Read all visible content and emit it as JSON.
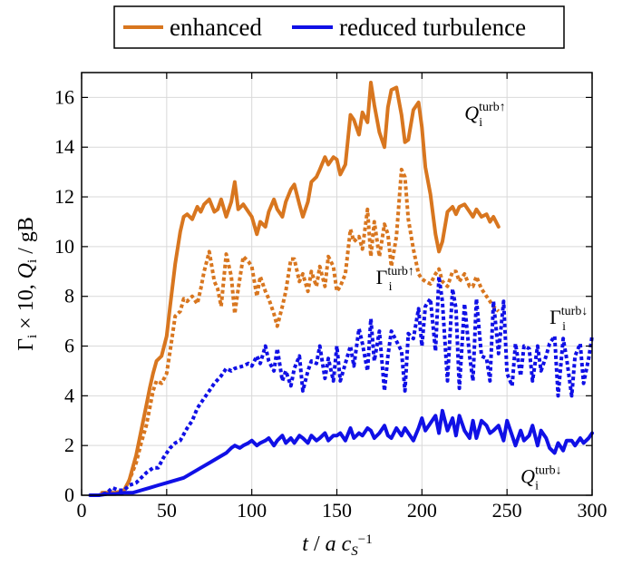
{
  "chart_data": {
    "type": "line",
    "xlabel": "t / a c_S^-1",
    "ylabel": "Γi × 10, Qi / gB",
    "xlim": [
      0,
      300
    ],
    "ylim": [
      0,
      17
    ],
    "xticks": [
      0,
      50,
      100,
      150,
      200,
      250,
      300
    ],
    "yticks": [
      0,
      2,
      4,
      6,
      8,
      10,
      12,
      14,
      16
    ],
    "grid": true,
    "legend_position": "top, outside plot",
    "legend": [
      "enhanced",
      "reduced turbulence"
    ],
    "series": [
      {
        "name": "enhanced",
        "quantity": "Q",
        "color": "#d8761f",
        "style": "solid",
        "x": [
          12,
          20,
          25,
          28,
          32,
          35,
          38,
          40,
          42,
          44,
          47,
          50,
          52,
          55,
          58,
          60,
          62,
          65,
          68,
          70,
          72,
          75,
          78,
          80,
          82,
          85,
          88,
          90,
          92,
          95,
          98,
          100,
          103,
          105,
          108,
          110,
          113,
          115,
          118,
          120,
          123,
          125,
          128,
          130,
          133,
          135,
          138,
          140,
          143,
          145,
          148,
          150,
          152,
          155,
          158,
          160,
          163,
          165,
          168,
          170,
          172,
          175,
          178,
          180,
          182,
          185,
          188,
          190,
          192,
          195,
          198,
          200,
          202,
          205,
          208,
          210,
          212,
          215,
          218,
          220,
          222,
          225,
          228,
          230,
          232,
          235,
          238,
          240,
          242,
          245
        ],
        "y": [
          0.1,
          0.1,
          0.2,
          0.6,
          1.6,
          2.6,
          3.6,
          4.3,
          4.9,
          5.4,
          5.6,
          6.4,
          7.6,
          9.3,
          10.6,
          11.2,
          11.3,
          11.1,
          11.6,
          11.4,
          11.7,
          11.9,
          11.4,
          11.5,
          11.9,
          11.2,
          11.8,
          12.6,
          11.5,
          11.7,
          11.4,
          11.2,
          10.5,
          11.0,
          10.8,
          11.4,
          11.9,
          11.5,
          11.2,
          11.8,
          12.3,
          12.5,
          11.7,
          11.2,
          11.8,
          12.6,
          12.8,
          13.1,
          13.6,
          13.3,
          13.6,
          13.5,
          12.9,
          13.3,
          15.3,
          15.1,
          14.5,
          15.4,
          15.0,
          16.6,
          15.7,
          14.6,
          14.0,
          15.6,
          16.3,
          16.4,
          15.3,
          14.2,
          14.3,
          15.5,
          15.8,
          14.8,
          13.2,
          12.1,
          10.5,
          9.8,
          10.2,
          11.4,
          11.6,
          11.3,
          11.6,
          11.7,
          11.4,
          11.2,
          11.5,
          11.2,
          11.3,
          11.0,
          11.2,
          10.8
        ]
      },
      {
        "name": "enhanced",
        "quantity": "Γ",
        "color": "#d8761f",
        "style": "dotted",
        "x": [
          12,
          20,
          25,
          28,
          32,
          35,
          38,
          40,
          42,
          44,
          47,
          50,
          52,
          55,
          58,
          60,
          62,
          65,
          68,
          70,
          72,
          75,
          78,
          80,
          82,
          85,
          88,
          90,
          92,
          95,
          98,
          100,
          103,
          105,
          108,
          110,
          113,
          115,
          118,
          120,
          123,
          125,
          128,
          130,
          133,
          135,
          138,
          140,
          143,
          145,
          148,
          150,
          152,
          155,
          158,
          160,
          163,
          165,
          168,
          170,
          172,
          175,
          178,
          180,
          182,
          185,
          188,
          190,
          192,
          195,
          198,
          200,
          202,
          205,
          208,
          210,
          212,
          215,
          218,
          220,
          222,
          225,
          228,
          230,
          232,
          235,
          238,
          240,
          242,
          245
        ],
        "y": [
          0.1,
          0.1,
          0.2,
          0.6,
          1.3,
          2.1,
          2.8,
          3.5,
          4.2,
          4.6,
          4.5,
          4.9,
          5.8,
          7.2,
          7.4,
          7.9,
          7.8,
          8.0,
          7.7,
          8.3,
          9.0,
          9.8,
          8.6,
          8.3,
          7.6,
          9.7,
          8.8,
          7.3,
          8.3,
          9.6,
          9.4,
          9.2,
          8.0,
          8.8,
          8.2,
          7.9,
          7.3,
          6.8,
          7.6,
          8.2,
          9.5,
          9.5,
          8.6,
          8.9,
          8.2,
          9.0,
          8.4,
          9.2,
          8.4,
          9.6,
          9.2,
          8.2,
          8.4,
          8.9,
          10.7,
          10.2,
          10.4,
          9.9,
          11.5,
          9.6,
          11.0,
          9.6,
          10.9,
          10.5,
          9.2,
          10.4,
          13.1,
          12.8,
          11.1,
          9.9,
          8.9,
          8.7,
          8.6,
          8.5,
          8.9,
          9.1,
          8.6,
          8.4,
          9.0,
          9.0,
          8.6,
          8.9,
          8.4,
          8.4,
          8.8,
          8.3,
          8.0,
          7.8,
          7.6,
          7.4
        ]
      },
      {
        "name": "reduced turbulence",
        "quantity": "Γ",
        "color": "#1010e6",
        "style": "dotted",
        "x": [
          5,
          10,
          15,
          18,
          22,
          25,
          28,
          32,
          35,
          38,
          42,
          45,
          48,
          52,
          55,
          58,
          62,
          65,
          68,
          72,
          75,
          78,
          82,
          85,
          88,
          90,
          95,
          98,
          100,
          103,
          105,
          108,
          110,
          113,
          115,
          118,
          120,
          123,
          125,
          128,
          130,
          133,
          135,
          138,
          140,
          143,
          145,
          148,
          150,
          152,
          155,
          158,
          160,
          163,
          165,
          168,
          170,
          172,
          175,
          178,
          180,
          182,
          185,
          188,
          190,
          192,
          195,
          198,
          200,
          202,
          205,
          208,
          210,
          212,
          215,
          218,
          220,
          222,
          225,
          228,
          230,
          232,
          235,
          238,
          240,
          242,
          245,
          248,
          250,
          253,
          255,
          258,
          260,
          263,
          265,
          268,
          270,
          273,
          275,
          278,
          280,
          283,
          285,
          288,
          290,
          293,
          295,
          298,
          300
        ],
        "y": [
          0,
          0,
          0.1,
          0.3,
          0.2,
          0.2,
          0.4,
          0.5,
          0.7,
          0.9,
          1.1,
          1.1,
          1.5,
          1.9,
          2.1,
          2.2,
          2.7,
          3.0,
          3.5,
          3.9,
          4.2,
          4.5,
          4.8,
          5.1,
          5.0,
          5.1,
          5.2,
          5.3,
          5.2,
          5.6,
          5.3,
          6.0,
          5.4,
          5.0,
          5.9,
          4.6,
          5.0,
          4.4,
          5.1,
          5.6,
          4.2,
          5.0,
          5.4,
          5.3,
          6.0,
          4.7,
          5.5,
          4.6,
          6.0,
          4.6,
          5.3,
          6.0,
          5.2,
          6.7,
          6.1,
          5.0,
          7.1,
          5.4,
          6.6,
          4.2,
          5.6,
          6.6,
          6.2,
          5.8,
          4.2,
          6.5,
          6.3,
          7.5,
          6.0,
          7.6,
          7.9,
          5.8,
          8.8,
          7.8,
          4.6,
          8.3,
          7.5,
          4.3,
          7.7,
          5.6,
          4.6,
          7.9,
          5.6,
          5.5,
          4.6,
          7.8,
          5.7,
          7.8,
          4.9,
          4.4,
          6.1,
          4.8,
          6.0,
          5.9,
          4.6,
          6.0,
          5.0,
          5.6,
          6.1,
          6.4,
          4.0,
          6.3,
          5.5,
          4.0,
          5.6,
          6.1,
          4.5,
          5.5,
          6.4
        ]
      },
      {
        "name": "reduced turbulence",
        "quantity": "Q",
        "color": "#1010e6",
        "style": "solid",
        "x": [
          5,
          10,
          15,
          20,
          25,
          30,
          35,
          40,
          45,
          50,
          55,
          60,
          65,
          70,
          75,
          80,
          85,
          88,
          90,
          93,
          95,
          98,
          100,
          103,
          105,
          108,
          110,
          113,
          115,
          118,
          120,
          123,
          125,
          128,
          130,
          133,
          135,
          138,
          140,
          143,
          145,
          148,
          150,
          152,
          155,
          158,
          160,
          163,
          165,
          168,
          170,
          172,
          175,
          178,
          180,
          182,
          185,
          188,
          190,
          192,
          195,
          198,
          200,
          202,
          205,
          208,
          210,
          212,
          215,
          218,
          220,
          222,
          225,
          228,
          230,
          232,
          235,
          238,
          240,
          242,
          245,
          248,
          250,
          253,
          255,
          258,
          260,
          263,
          265,
          268,
          270,
          273,
          275,
          278,
          280,
          283,
          285,
          288,
          290,
          293,
          295,
          298,
          300
        ],
        "y": [
          0,
          0,
          0.05,
          0.05,
          0.1,
          0.1,
          0.2,
          0.3,
          0.4,
          0.5,
          0.6,
          0.7,
          0.9,
          1.1,
          1.3,
          1.5,
          1.7,
          1.9,
          2.0,
          1.9,
          2.0,
          2.1,
          2.2,
          2.0,
          2.1,
          2.2,
          2.3,
          2.0,
          2.2,
          2.4,
          2.1,
          2.3,
          2.1,
          2.4,
          2.3,
          2.1,
          2.4,
          2.2,
          2.3,
          2.5,
          2.2,
          2.4,
          2.4,
          2.5,
          2.2,
          2.7,
          2.3,
          2.5,
          2.4,
          2.7,
          2.6,
          2.3,
          2.5,
          2.8,
          2.4,
          2.3,
          2.7,
          2.4,
          2.7,
          2.5,
          2.2,
          2.7,
          3.1,
          2.6,
          2.9,
          3.2,
          2.5,
          3.4,
          2.6,
          3.1,
          2.4,
          3.2,
          2.6,
          2.3,
          3.0,
          2.3,
          3.0,
          2.8,
          2.5,
          2.6,
          2.8,
          2.2,
          3.0,
          2.4,
          2.0,
          2.6,
          2.2,
          2.4,
          2.8,
          2.0,
          2.6,
          2.3,
          1.9,
          1.7,
          2.1,
          1.8,
          2.2,
          2.2,
          2.0,
          2.3,
          2.1,
          2.3,
          2.5
        ]
      }
    ],
    "annotations": [
      {
        "base": "Q",
        "sub": "i",
        "sup": "turb↑",
        "at": [
          225,
          15.1
        ]
      },
      {
        "base": "Γ",
        "sub": "i",
        "sup": "turb↑",
        "at": [
          173,
          8.5
        ]
      },
      {
        "base": "Γ",
        "sub": "i",
        "sup": "turb↓",
        "at": [
          275,
          6.9
        ]
      },
      {
        "base": "Q",
        "sub": "i",
        "sup": "turb↓",
        "at": [
          258,
          0.5
        ]
      }
    ]
  }
}
